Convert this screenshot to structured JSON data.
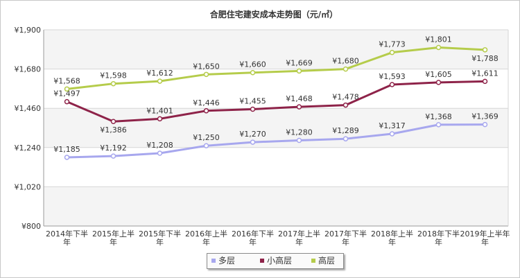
{
  "chart_data": {
    "type": "line",
    "title": "合肥住宅建安成本走势图（元/㎡）",
    "categories": [
      "2014年下半年",
      "2015年上半年",
      "2015年下半年",
      "2016年上半年",
      "2016年下半年",
      "2017年上半年",
      "2017年下半年",
      "2018年上半年",
      "2018年下半年",
      "2019年上半年"
    ],
    "category_lines": [
      [
        "2014年下半",
        "年"
      ],
      [
        "2015年上半",
        "年"
      ],
      [
        "2015年下半",
        "年"
      ],
      [
        "2016年上半",
        "年"
      ],
      [
        "2016年下半",
        "年"
      ],
      [
        "2017年上半",
        "年"
      ],
      [
        "2017年下半",
        "年"
      ],
      [
        "2018年上半",
        "年"
      ],
      [
        "2018年下半",
        "年"
      ],
      [
        "2019年上半年",
        "年"
      ]
    ],
    "ylim": [
      800,
      1900
    ],
    "yticks": [
      800,
      1020,
      1240,
      1460,
      1680,
      1900
    ],
    "ytick_labels": [
      "¥800",
      "¥1,020",
      "¥1,240",
      "¥1,460",
      "¥1,680",
      "¥1,900"
    ],
    "grid": true,
    "legend_position": "bottom",
    "series": [
      {
        "name": "多层",
        "color": "#a7a7ee",
        "values": [
          1185,
          1192,
          1208,
          1250,
          1270,
          1280,
          1289,
          1317,
          1368,
          1369
        ],
        "labels": [
          "¥1,185",
          "¥1,192",
          "¥1,208",
          "¥1,250",
          "¥1,270",
          "¥1,280",
          "¥1,289",
          "¥1,317",
          "¥1,368",
          "¥1,369"
        ]
      },
      {
        "name": "小高层",
        "color": "#8e2349",
        "values": [
          1497,
          1386,
          1401,
          1446,
          1455,
          1468,
          1478,
          1593,
          1605,
          1611
        ],
        "labels": [
          "¥1,497",
          "¥1,386",
          "¥1,401",
          "¥1,446",
          "¥1,455",
          "¥1,468",
          "¥1,478",
          "¥1,593",
          "¥1,605",
          "¥1,611"
        ]
      },
      {
        "name": "高层",
        "color": "#b5cc4b",
        "values": [
          1568,
          1598,
          1612,
          1650,
          1660,
          1669,
          1680,
          1773,
          1801,
          1788
        ],
        "labels": [
          "¥1,568",
          "¥1,598",
          "¥1,612",
          "¥1,650",
          "¥1,660",
          "¥1,669",
          "¥1,680",
          "¥1,773",
          "¥1,801",
          "¥1,788"
        ]
      }
    ]
  }
}
